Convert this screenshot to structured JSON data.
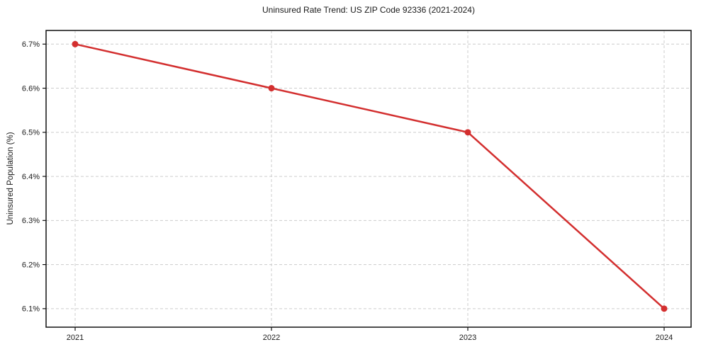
{
  "chart": {
    "title": "Uninsured Rate Trend: US ZIP Code 92336 (2021-2024)",
    "ylabel": "Uninsured Population (%)",
    "xlabel": ""
  },
  "chart_data": {
    "type": "line",
    "title": "Uninsured Rate Trend: US ZIP Code 92336 (2021-2024)",
    "xlabel": "",
    "ylabel": "Uninsured Population (%)",
    "categories": [
      "2021",
      "2022",
      "2023",
      "2024"
    ],
    "values": [
      6.7,
      6.6,
      6.5,
      6.1
    ],
    "yticks": [
      6.1,
      6.2,
      6.3,
      6.4,
      6.5,
      6.6,
      6.7
    ],
    "ytick_labels": [
      "6.1%",
      "6.2%",
      "6.3%",
      "6.4%",
      "6.5%",
      "6.6%",
      "6.7%"
    ],
    "ylim": [
      6.058,
      6.731
    ],
    "grid": true,
    "grid_style": "dashed",
    "legend_position": "none",
    "colors": {
      "line": "#d32f2f",
      "marker": "#d32f2f",
      "grid": "#cccccc",
      "spine": "#111111",
      "text": "#1a1a1a"
    }
  }
}
